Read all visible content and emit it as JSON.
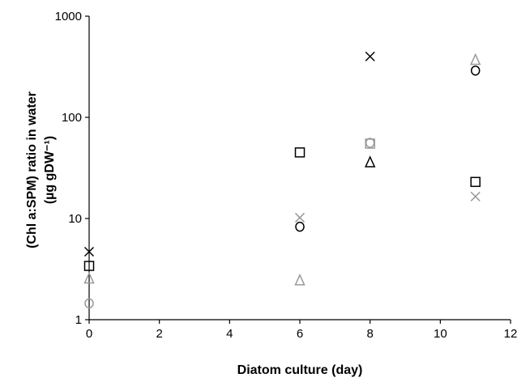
{
  "chart_data": {
    "type": "scatter",
    "title": "",
    "xlabel": "Diatom culture (day)",
    "ylabel_lines": [
      "(Chl a:SPM) ratio in water",
      "(µg gDW⁻¹)"
    ],
    "x_ticks": [
      "0",
      "2",
      "4",
      "6",
      "8",
      "10",
      "12"
    ],
    "y_ticks": [
      "1",
      "10",
      "100",
      "1000"
    ],
    "xlim": [
      0,
      12
    ],
    "ylim": [
      1,
      1000
    ],
    "y_scale": "log",
    "grid": false,
    "legend": "none",
    "series": [
      {
        "marker": "cross",
        "color": "#000000",
        "points": [
          [
            0,
            4.7
          ],
          [
            8,
            400
          ]
        ]
      },
      {
        "marker": "cross",
        "color": "#999999",
        "points": [
          [
            6,
            10.2
          ],
          [
            11,
            16.5
          ]
        ]
      },
      {
        "marker": "square",
        "color": "#000000",
        "points": [
          [
            0,
            3.4
          ],
          [
            6,
            45
          ],
          [
            11,
            23
          ]
        ]
      },
      {
        "marker": "square",
        "color": "#999999",
        "points": [
          [
            8,
            55
          ]
        ]
      },
      {
        "marker": "circle",
        "color": "#000000",
        "points": [
          [
            6,
            8.3
          ],
          [
            11,
            290
          ]
        ]
      },
      {
        "marker": "circle",
        "color": "#999999",
        "points": [
          [
            0,
            1.45
          ],
          [
            8,
            56
          ]
        ]
      },
      {
        "marker": "triangle",
        "color": "#000000",
        "points": [
          [
            8,
            36
          ]
        ]
      },
      {
        "marker": "triangle",
        "color": "#999999",
        "points": [
          [
            0,
            2.55
          ],
          [
            6,
            2.45
          ],
          [
            11,
            370
          ]
        ]
      }
    ]
  }
}
